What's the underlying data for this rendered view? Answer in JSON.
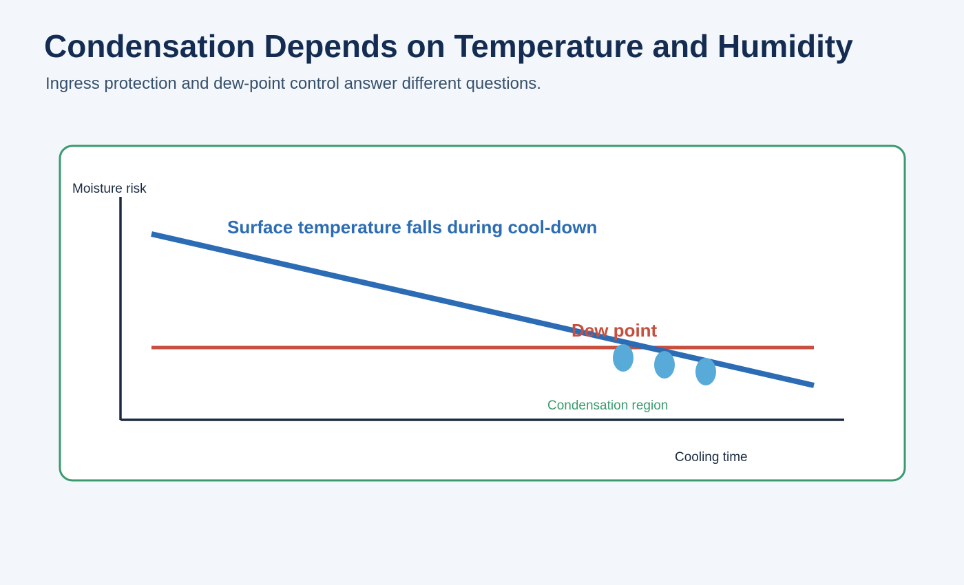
{
  "header": {
    "title": "Condensation Depends on Temperature and Humidity",
    "subtitle": "Ingress protection and dew-point control answer different questions."
  },
  "diagram": {
    "y_axis_label": "Moisture risk",
    "x_axis_label": "Cooling time",
    "temperature_line_label": "Surface temperature falls during cool-down",
    "dew_point_label": "Dew point",
    "condensation_label": "Condensation region",
    "colors": {
      "panel_border": "#3a9a6e",
      "axis": "#1b2a40",
      "temperature_line": "#2b6cb4",
      "dew_point_line": "#c84e3e",
      "droplets": "#58aad8",
      "condensation_text": "#3a9a6e"
    }
  }
}
